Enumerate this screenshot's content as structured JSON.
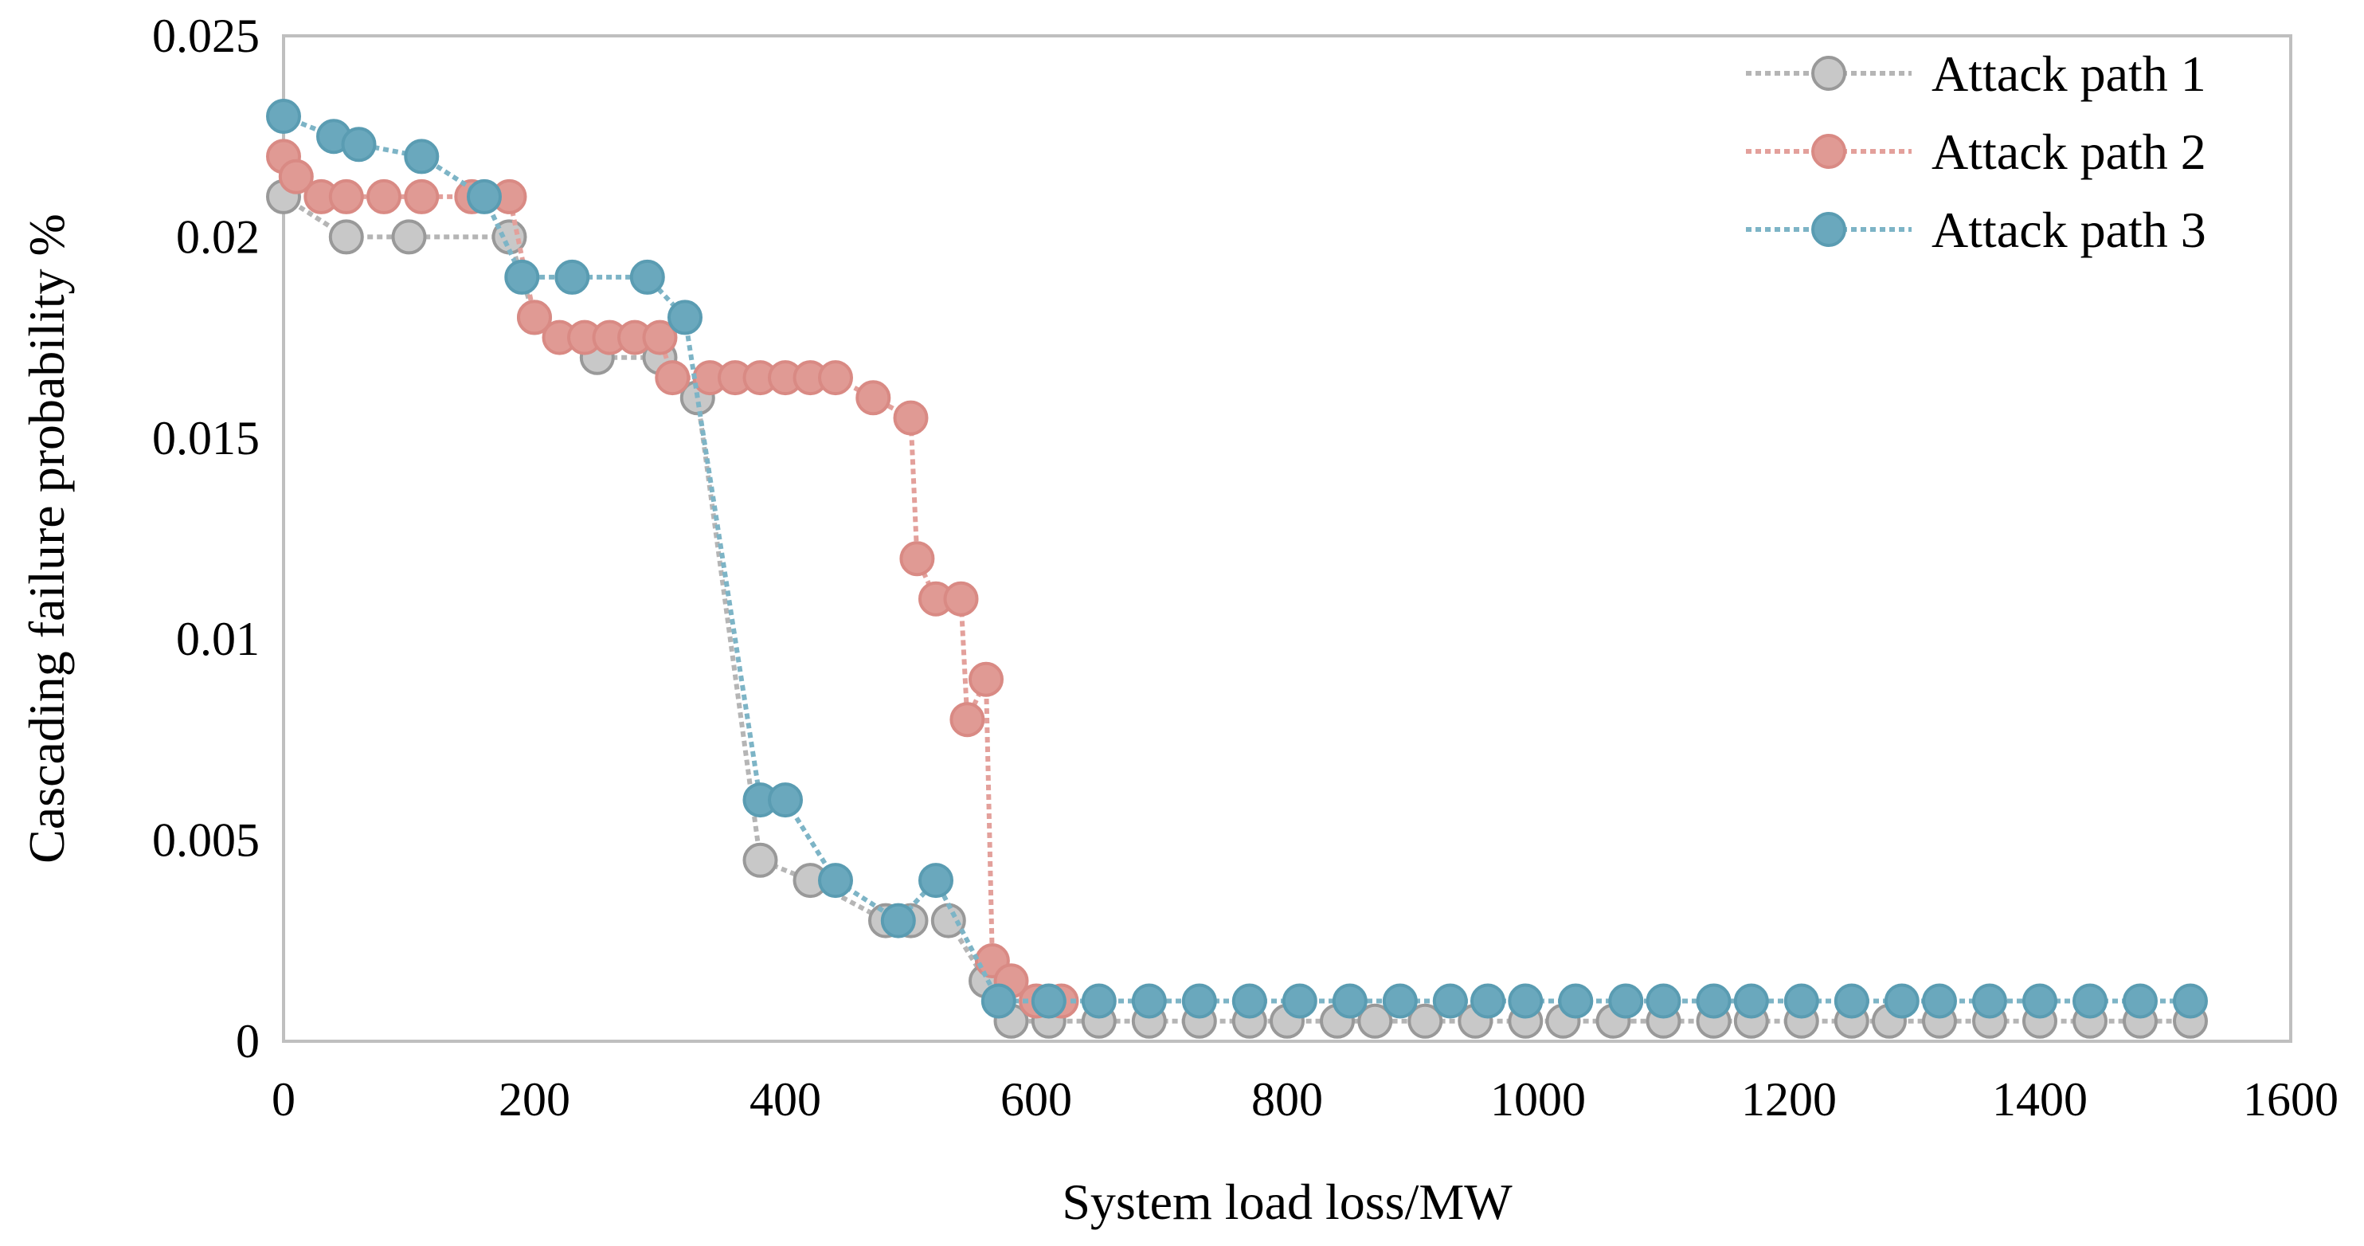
{
  "chart_data": {
    "type": "line",
    "title": "",
    "xlabel": "System load loss/MW",
    "ylabel": "Cascading failure probability %",
    "xlim": [
      0,
      1600
    ],
    "ylim": [
      0,
      0.025
    ],
    "xticks": [
      0,
      200,
      400,
      600,
      800,
      1000,
      1200,
      1400,
      1600
    ],
    "yticks": [
      0,
      0.005,
      0.01,
      0.015,
      0.02,
      0.025
    ],
    "xtick_labels": [
      "0",
      "200",
      "400",
      "600",
      "800",
      "1000",
      "1200",
      "1400",
      "1600"
    ],
    "ytick_labels": [
      "0",
      "0.005",
      "0.01",
      "0.015",
      "0.02",
      "0.025"
    ],
    "grid": false,
    "legend_position": "top-right",
    "series": [
      {
        "name": "Attack path 1",
        "fill": "#c8c8c8",
        "stroke": "#999999",
        "line": "#b5b5b5",
        "x": [
          0,
          50,
          100,
          180,
          200,
          250,
          300,
          330,
          380,
          420,
          480,
          500,
          530,
          560,
          580,
          610,
          650,
          690,
          730,
          770,
          800,
          840,
          870,
          910,
          950,
          990,
          1020,
          1060,
          1100,
          1140,
          1170,
          1210,
          1250,
          1280,
          1320,
          1360,
          1400,
          1440,
          1480,
          1520
        ],
        "y": [
          0.021,
          0.02,
          0.02,
          0.02,
          0.018,
          0.017,
          0.017,
          0.016,
          0.0045,
          0.004,
          0.003,
          0.003,
          0.003,
          0.0015,
          0.0005,
          0.0005,
          0.0005,
          0.0005,
          0.0005,
          0.0005,
          0.0005,
          0.0005,
          0.0005,
          0.0005,
          0.0005,
          0.0005,
          0.0005,
          0.0005,
          0.0005,
          0.0005,
          0.0005,
          0.0005,
          0.0005,
          0.0005,
          0.0005,
          0.0005,
          0.0005,
          0.0005,
          0.0005,
          0.0005
        ]
      },
      {
        "name": "Attack path 2",
        "fill": "#e09a94",
        "stroke": "#d98a84",
        "line": "#e3a09b",
        "x": [
          0,
          10,
          30,
          50,
          80,
          110,
          150,
          180,
          200,
          220,
          240,
          260,
          280,
          300,
          310,
          340,
          360,
          380,
          400,
          420,
          440,
          470,
          500,
          505,
          520,
          540,
          545,
          560,
          565,
          580,
          600,
          620
        ],
        "y": [
          0.022,
          0.0215,
          0.021,
          0.021,
          0.021,
          0.021,
          0.021,
          0.021,
          0.018,
          0.0175,
          0.0175,
          0.0175,
          0.0175,
          0.0175,
          0.0165,
          0.0165,
          0.0165,
          0.0165,
          0.0165,
          0.0165,
          0.0165,
          0.016,
          0.0155,
          0.012,
          0.011,
          0.011,
          0.008,
          0.009,
          0.002,
          0.0015,
          0.001,
          0.001
        ]
      },
      {
        "name": "Attack path 3",
        "fill": "#6aa8bd",
        "stroke": "#5a9cb2",
        "line": "#7db4c6",
        "x": [
          0,
          40,
          60,
          110,
          160,
          190,
          230,
          290,
          320,
          380,
          400,
          440,
          490,
          520,
          570,
          610,
          650,
          690,
          730,
          770,
          810,
          850,
          890,
          930,
          960,
          990,
          1030,
          1070,
          1100,
          1140,
          1170,
          1210,
          1250,
          1290,
          1320,
          1360,
          1400,
          1440,
          1480,
          1520
        ],
        "y": [
          0.023,
          0.0225,
          0.0223,
          0.022,
          0.021,
          0.019,
          0.019,
          0.019,
          0.018,
          0.006,
          0.006,
          0.004,
          0.003,
          0.004,
          0.001,
          0.001,
          0.001,
          0.001,
          0.001,
          0.001,
          0.001,
          0.001,
          0.001,
          0.001,
          0.001,
          0.001,
          0.001,
          0.001,
          0.001,
          0.001,
          0.001,
          0.001,
          0.001,
          0.001,
          0.001,
          0.001,
          0.001,
          0.001,
          0.001,
          0.001
        ]
      }
    ]
  }
}
